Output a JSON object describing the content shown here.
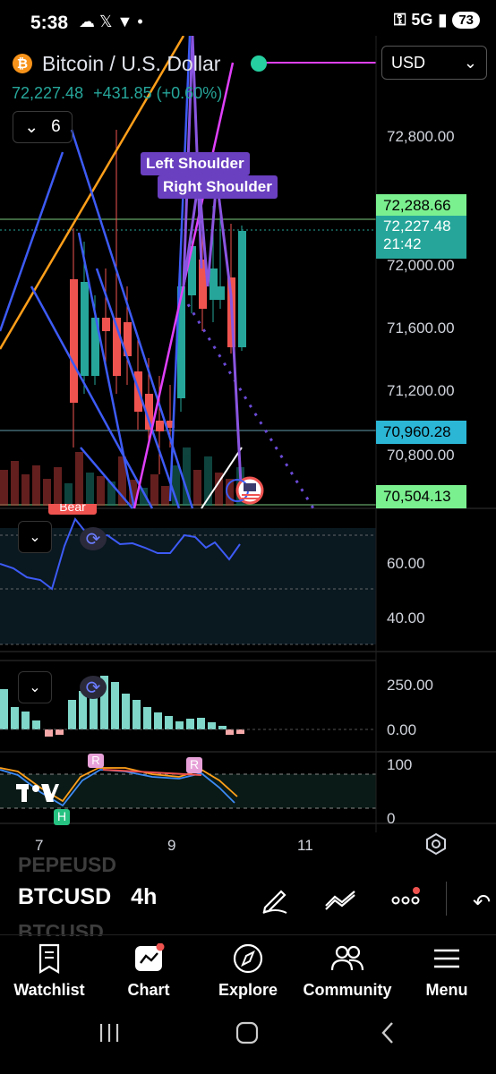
{
  "status_bar": {
    "time": "5:38",
    "network": "5G",
    "battery": "73"
  },
  "header": {
    "title": "Bitcoin / U.S. Dollar",
    "last_price": "72,227.48",
    "change": "+431.85 (+0.60%)",
    "currency": "USD",
    "interval_count": "6"
  },
  "price_axis": {
    "labels": [
      "72,800.00",
      "72,000.00",
      "71,600.00",
      "71,200.00",
      "70,800.00"
    ],
    "tag_upper": "72,288.66",
    "tag_current_price": "72,227.48",
    "tag_current_time": "21:42",
    "tag_blue": "70,960.28",
    "tag_lower": "70,504.13"
  },
  "patterns": {
    "left_shoulder": "Left Shoulder",
    "right_shoulder": "Right Shoulder"
  },
  "bear_label": "Bear",
  "rsi_axis": [
    "60.00",
    "40.00"
  ],
  "macd_axis": [
    "250.00",
    "0.00"
  ],
  "stoch_axis": [
    "100",
    "0"
  ],
  "stoch_markers": [
    "R",
    "R",
    "H"
  ],
  "time_axis": [
    "7",
    "9",
    "11"
  ],
  "toolbar": {
    "symbol": "BTCUSD",
    "interval": "4h",
    "ghost_above": "PEPEUSD",
    "ghost_below": "BTCUSD"
  },
  "bottom_nav": [
    "Watchlist",
    "Chart",
    "Explore",
    "Community",
    "Menu"
  ],
  "colors": {
    "up": "#26a69a",
    "down": "#ef5350",
    "accent_purple": "#6a3fc0",
    "tag_green": "#7bf08f",
    "tag_blue": "#2bb6d6"
  }
}
